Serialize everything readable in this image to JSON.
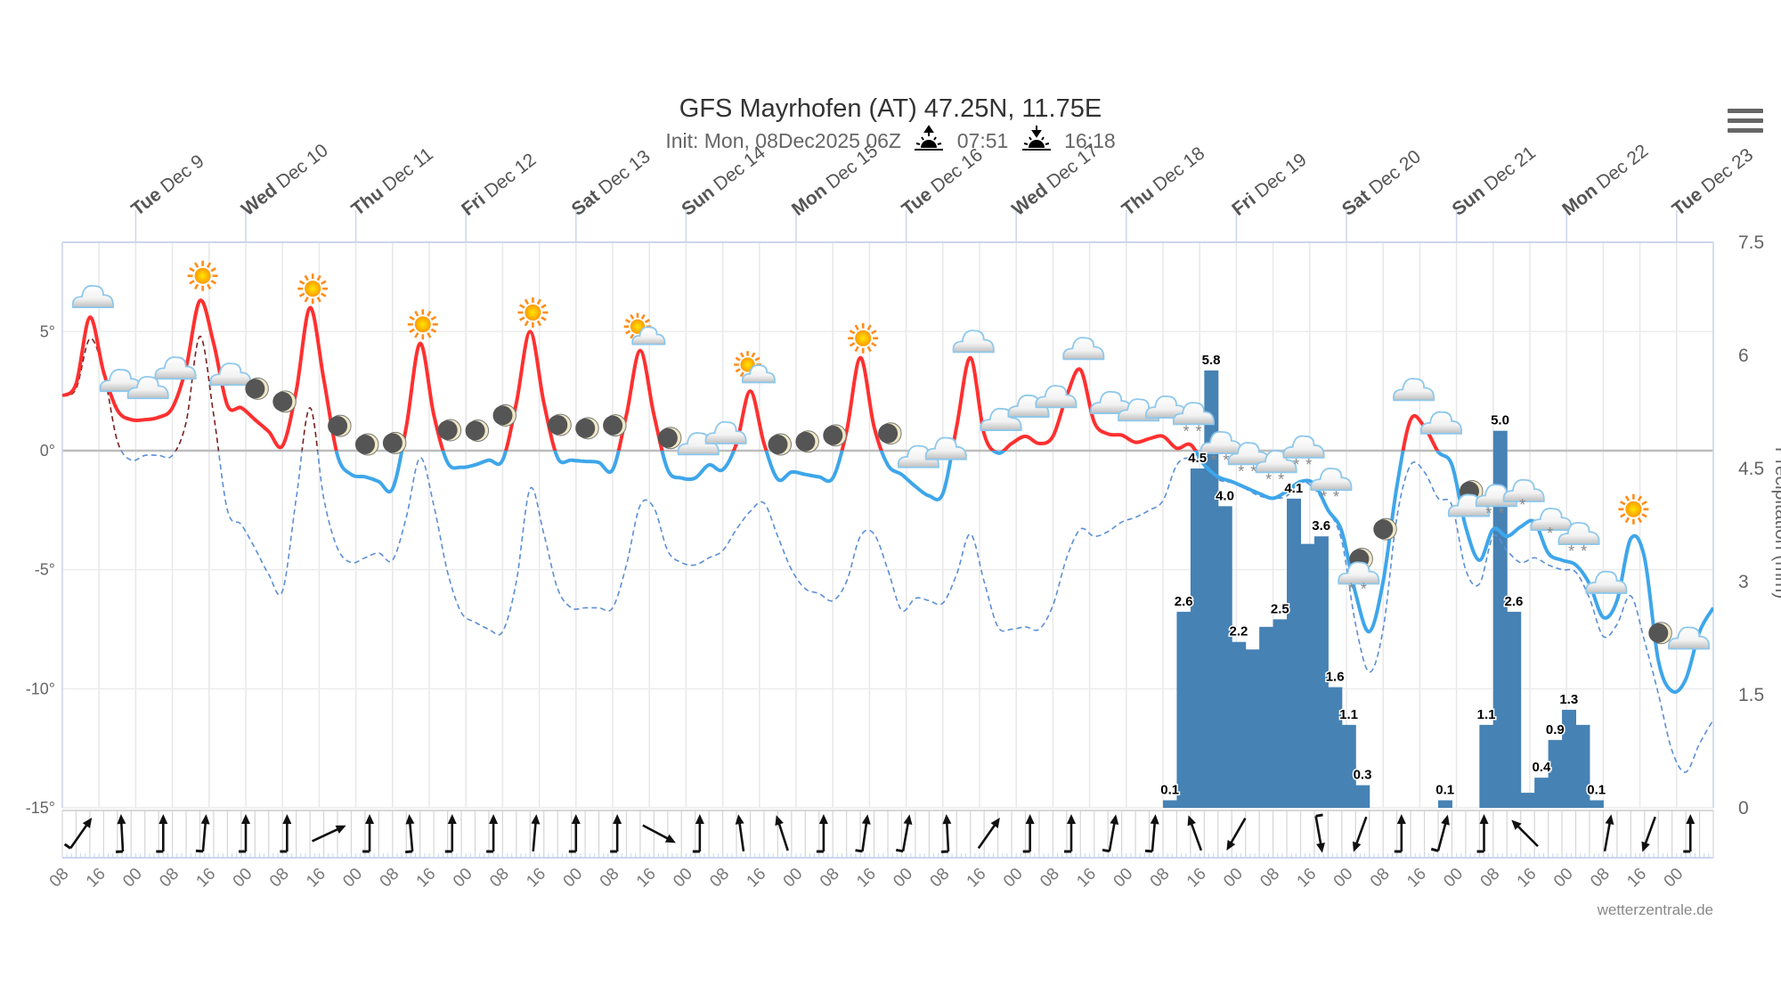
{
  "header": {
    "title": "GFS Mayrhofen (AT) 47.25N, 11.75E",
    "init": "Init: Mon, 08Dec2025 06Z",
    "sunrise_icon": "sunrise-icon",
    "sunrise": "07:51",
    "sunset_icon": "sunset-icon",
    "sunset": "16:18"
  },
  "menu_icon": "hamburger-menu-icon",
  "watermark": "wetterzentrale.de",
  "chart_data": {
    "type": "line+bar",
    "x_range": [
      "Dec 8 08:00",
      "Dec 23 08:00"
    ],
    "day_labels": [
      {
        "weekday": "Tue",
        "date": "Dec 9"
      },
      {
        "weekday": "Wed",
        "date": "Dec 10"
      },
      {
        "weekday": "Thu",
        "date": "Dec 11"
      },
      {
        "weekday": "Fri",
        "date": "Dec 12"
      },
      {
        "weekday": "Sat",
        "date": "Dec 13"
      },
      {
        "weekday": "Sun",
        "date": "Dec 14"
      },
      {
        "weekday": "Mon",
        "date": "Dec 15"
      },
      {
        "weekday": "Tue",
        "date": "Dec 16"
      },
      {
        "weekday": "Wed",
        "date": "Dec 17"
      },
      {
        "weekday": "Thu",
        "date": "Dec 18"
      },
      {
        "weekday": "Fri",
        "date": "Dec 19"
      },
      {
        "weekday": "Sat",
        "date": "Dec 20"
      },
      {
        "weekday": "Sun",
        "date": "Dec 21"
      },
      {
        "weekday": "Mon",
        "date": "Dec 22"
      },
      {
        "weekday": "Tue",
        "date": "Dec 23"
      }
    ],
    "hour_tick_labels": [
      "08",
      "16",
      "00",
      "08",
      "16",
      "00",
      "08",
      "16",
      "00",
      "08",
      "16",
      "00",
      "08",
      "16",
      "00",
      "08",
      "16",
      "00",
      "08",
      "16",
      "00",
      "08",
      "16",
      "00",
      "08",
      "16",
      "00",
      "08",
      "16",
      "00",
      "08",
      "16",
      "00",
      "08",
      "16",
      "00",
      "08",
      "16",
      "00",
      "08",
      "16",
      "00",
      "08",
      "16",
      "00"
    ],
    "y_left": {
      "ticks": [
        "5°",
        "0°",
        "-5°",
        "-10°",
        "-15°"
      ],
      "tick_values": [
        5,
        0,
        -5,
        -10,
        -15
      ],
      "range": [
        -15,
        8.75
      ]
    },
    "y_right": {
      "label": "Precipitation (mm)",
      "ticks": [
        "7.5",
        "6",
        "4.5",
        "3",
        "1.5",
        "0"
      ],
      "tick_values": [
        7.5,
        6,
        4.5,
        3,
        1.5,
        0
      ],
      "range": [
        0,
        7.5
      ]
    },
    "grid": true,
    "temperature": {
      "start": "Dec 8 08:00",
      "step_hours": 3,
      "colors": {
        "above_zero": "#ff3030",
        "below_zero": "#3ea6ea"
      },
      "values": [
        2.3,
        2.8,
        5.6,
        3.3,
        1.7,
        1.3,
        1.3,
        1.4,
        1.8,
        3.5,
        6.3,
        4.5,
        1.9,
        1.8,
        1.3,
        0.8,
        0.2,
        2.5,
        6.0,
        3.0,
        -0.2,
        -1.0,
        -1.1,
        -1.3,
        -1.6,
        1.0,
        4.5,
        1.5,
        -0.5,
        -0.7,
        -0.6,
        -0.4,
        -0.4,
        2.0,
        5.0,
        2.0,
        -0.3,
        -0.4,
        -0.45,
        -0.5,
        -0.8,
        1.5,
        4.2,
        1.5,
        -0.8,
        -1.15,
        -1.15,
        -0.6,
        -0.8,
        0.3,
        2.5,
        0.3,
        -1.2,
        -0.9,
        -1.0,
        -1.1,
        -1.15,
        0.8,
        3.9,
        1.0,
        -0.6,
        -1.0,
        -1.5,
        -1.9,
        -1.8,
        1.0,
        3.9,
        0.7,
        -0.1,
        0.3,
        0.6,
        0.3,
        0.6,
        2.3,
        3.4,
        1.2,
        0.7,
        0.65,
        0.35,
        0.5,
        0.6,
        0.1,
        0.25,
        -0.6,
        -1.1,
        -1.3,
        -1.55,
        -1.8,
        -2.0,
        -1.7,
        -1.3,
        -1.4,
        -2.5,
        -3.4,
        -6.0,
        -7.6,
        -5.5,
        -1.5,
        1.3,
        1.0,
        -0.05,
        -0.6,
        -3.2,
        -4.6,
        -3.3,
        -3.6,
        -3.2,
        -3.0,
        -4.3,
        -4.6,
        -4.8,
        -5.6,
        -7.0,
        -6.3,
        -3.7,
        -4.5,
        -8.8,
        -10.1,
        -9.6,
        -7.6,
        -6.6
      ]
    },
    "dewpoint": {
      "start": "Dec 8 08:00",
      "step_hours": 3,
      "style": "dashed",
      "colors": {
        "above_zero": "#7a1f1f",
        "below_zero": "#5b8fd6"
      },
      "values": [
        2.3,
        2.6,
        4.7,
        3.3,
        0.4,
        -0.4,
        -0.2,
        -0.2,
        -0.2,
        1.2,
        4.8,
        1.5,
        -2.5,
        -3.1,
        -4.1,
        -5.2,
        -5.9,
        -2.0,
        1.8,
        -2.0,
        -4.1,
        -4.7,
        -4.5,
        -4.3,
        -4.6,
        -2.8,
        -0.3,
        -2.3,
        -5.1,
        -6.8,
        -7.2,
        -7.5,
        -7.6,
        -5.5,
        -1.6,
        -3.5,
        -5.8,
        -6.6,
        -6.6,
        -6.6,
        -6.6,
        -4.8,
        -2.3,
        -2.4,
        -4.2,
        -4.7,
        -4.8,
        -4.5,
        -4.2,
        -3.3,
        -2.55,
        -2.2,
        -3.6,
        -5.0,
        -5.8,
        -6.0,
        -6.3,
        -5.5,
        -3.6,
        -3.5,
        -5.0,
        -6.7,
        -6.2,
        -6.3,
        -6.4,
        -5.2,
        -3.5,
        -5.5,
        -7.4,
        -7.5,
        -7.4,
        -7.5,
        -6.5,
        -4.5,
        -3.3,
        -3.6,
        -3.4,
        -3.0,
        -2.8,
        -2.5,
        -2.1,
        -0.6,
        -0.3,
        -0.5,
        -1.2,
        -1.35,
        -1.6,
        -1.9,
        -2.0,
        -1.9,
        -1.3,
        -1.6,
        -2.5,
        -3.8,
        -7.3,
        -9.3,
        -7.5,
        -2.8,
        -0.6,
        -0.9,
        -2.0,
        -2.3,
        -5.0,
        -5.6,
        -3.6,
        -4.2,
        -4.7,
        -4.5,
        -4.8,
        -5.0,
        -5.1,
        -6.2,
        -7.8,
        -7.3,
        -6.1,
        -8.0,
        -10.2,
        -12.6,
        -13.5,
        -12.3,
        -11.3
      ]
    },
    "precipitation": {
      "step_hours": 3,
      "color": "#4682b4",
      "bars": [
        {
          "time": "Dec 18 08:00",
          "value": 0.1,
          "label": "0.1"
        },
        {
          "time": "Dec 18 11:00",
          "value": 2.6,
          "label": "2.6"
        },
        {
          "time": "Dec 18 14:00",
          "value": 4.5,
          "label": "4.5"
        },
        {
          "time": "Dec 18 17:00",
          "value": 5.8,
          "label": "5.8"
        },
        {
          "time": "Dec 18 20:00",
          "value": 4.0,
          "label": "4.0"
        },
        {
          "time": "Dec 18 23:00",
          "value": 2.2,
          "label": "2.2"
        },
        {
          "time": "Dec 19 02:00",
          "value": 2.1,
          "label": null
        },
        {
          "time": "Dec 19 05:00",
          "value": 2.4,
          "label": null
        },
        {
          "time": "Dec 19 08:00",
          "value": 2.5,
          "label": "2.5"
        },
        {
          "time": "Dec 19 11:00",
          "value": 4.1,
          "label": "4.1"
        },
        {
          "time": "Dec 19 14:00",
          "value": 3.5,
          "label": null
        },
        {
          "time": "Dec 19 17:00",
          "value": 3.6,
          "label": "3.6"
        },
        {
          "time": "Dec 19 20:00",
          "value": 1.6,
          "label": "1.6"
        },
        {
          "time": "Dec 19 23:00",
          "value": 1.1,
          "label": "1.1"
        },
        {
          "time": "Dec 20 02:00",
          "value": 0.3,
          "label": "0.3"
        },
        {
          "time": "Dec 20 20:00",
          "value": 0.1,
          "label": "0.1"
        },
        {
          "time": "Dec 21 05:00",
          "value": 1.1,
          "label": "1.1"
        },
        {
          "time": "Dec 21 08:00",
          "value": 5.0,
          "label": "5.0"
        },
        {
          "time": "Dec 21 11:00",
          "value": 2.6,
          "label": "2.6"
        },
        {
          "time": "Dec 21 14:00",
          "value": 0.2,
          "label": null
        },
        {
          "time": "Dec 21 17:00",
          "value": 0.4,
          "label": "0.4"
        },
        {
          "time": "Dec 21 20:00",
          "value": 0.9,
          "label": "0.9"
        },
        {
          "time": "Dec 21 23:00",
          "value": 1.3,
          "label": "1.3"
        },
        {
          "time": "Dec 22 02:00",
          "value": 1.1,
          "label": null
        },
        {
          "time": "Dec 22 05:00",
          "value": 0.1,
          "label": "0.1"
        }
      ]
    },
    "weather_icons": {
      "first": "Dec 8 14:00",
      "step_hours": 6,
      "types": [
        "cloud",
        "cloud",
        "cloud",
        "cloud",
        "sun",
        "cloud",
        "moon",
        "moon",
        "sun",
        "moon",
        "moon",
        "moon",
        "sun",
        "moon",
        "moon",
        "moon",
        "sun",
        "moon",
        "moon",
        "moon",
        "sun-cloud",
        "moon",
        "cloud",
        "cloud",
        "sun-cloud",
        "moon",
        "moon",
        "moon",
        "sun",
        "moon",
        "cloud",
        "cloud",
        "cloud",
        "cloud",
        "cloud",
        "cloud",
        "cloud",
        "cloud",
        "cloud",
        "cloud",
        "snow",
        "snow",
        "snow",
        "snow",
        "snow",
        "snow",
        "moon-snow",
        "moon",
        "cloud",
        "cloud",
        "moon-cloud",
        "snow",
        "light-snow",
        "light-snow",
        "snow",
        "cloud",
        "sun",
        "moon",
        "cloud"
      ]
    },
    "wind": {
      "first": "Dec 8 12:00",
      "step_hours": 9,
      "arrows": [
        {
          "dir_deg": 35,
          "barb": true
        },
        {
          "dir_deg": -3,
          "barb": true
        },
        {
          "dir_deg": 0,
          "barb": true
        },
        {
          "dir_deg": 5,
          "barb": true
        },
        {
          "dir_deg": 0,
          "barb": true
        },
        {
          "dir_deg": 0,
          "barb": true
        },
        {
          "dir_deg": 65,
          "barb": false
        },
        {
          "dir_deg": 0,
          "barb": true
        },
        {
          "dir_deg": -5,
          "barb": true
        },
        {
          "dir_deg": 0,
          "barb": true
        },
        {
          "dir_deg": 0,
          "barb": true
        },
        {
          "dir_deg": 5,
          "barb": false
        },
        {
          "dir_deg": 0,
          "barb": true
        },
        {
          "dir_deg": 0,
          "barb": true
        },
        {
          "dir_deg": 118,
          "barb": false
        },
        {
          "dir_deg": 0,
          "barb": true
        },
        {
          "dir_deg": -8,
          "barb": false
        },
        {
          "dir_deg": -18,
          "barb": false
        },
        {
          "dir_deg": 0,
          "barb": true
        },
        {
          "dir_deg": 8,
          "barb": true
        },
        {
          "dir_deg": 10,
          "barb": true
        },
        {
          "dir_deg": -3,
          "barb": true
        },
        {
          "dir_deg": 35,
          "barb": false
        },
        {
          "dir_deg": 0,
          "barb": true
        },
        {
          "dir_deg": 0,
          "barb": true
        },
        {
          "dir_deg": 10,
          "barb": true
        },
        {
          "dir_deg": 5,
          "barb": true
        },
        {
          "dir_deg": -20,
          "barb": false
        },
        {
          "dir_deg": 210,
          "barb": false
        },
        null,
        {
          "dir_deg": 170,
          "barb": true
        },
        {
          "dir_deg": 200,
          "barb": false
        },
        {
          "dir_deg": 0,
          "barb": true
        },
        {
          "dir_deg": 15,
          "barb": true
        },
        {
          "dir_deg": 0,
          "barb": true
        },
        {
          "dir_deg": -45,
          "barb": false
        },
        null,
        {
          "dir_deg": 10,
          "barb": false
        },
        {
          "dir_deg": 200,
          "barb": false
        },
        {
          "dir_deg": 0,
          "barb": true
        }
      ]
    }
  }
}
